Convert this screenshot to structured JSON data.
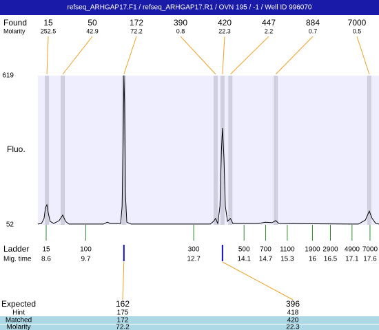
{
  "chart_data": {
    "type": "line",
    "title": "refseq_ARHGAP17.F1 / refseq_ARHGAP17.R1 / OVN 195 / -1 / Well ID 996070",
    "y_label": "Fluo.",
    "ylim": [
      52,
      619
    ],
    "yticks": [
      52,
      619
    ],
    "xlim": [
      8.37,
      17.85
    ],
    "series": [
      {
        "color": "#000000",
        "x": [
          8.37,
          8.47,
          8.54,
          8.58,
          8.62,
          8.66,
          8.71,
          8.81,
          8.96,
          9.06,
          9.14,
          9.23,
          10.19,
          10.3,
          10.38,
          10.67,
          10.71,
          10.74,
          10.76,
          10.78,
          10.8,
          10.84,
          10.96,
          13.16,
          13.25,
          13.31,
          13.37,
          13.43,
          13.47,
          13.5,
          13.54,
          13.58,
          13.64,
          13.72,
          13.79,
          14.5,
          14.69,
          14.88,
          14.98,
          15.07,
          17.28,
          17.47,
          17.58,
          17.66,
          17.76,
          17.85
        ],
        "values": [
          55,
          57,
          76,
          117,
          128,
          96,
          65,
          57,
          68,
          89,
          65,
          55,
          55,
          62,
          57,
          57,
          123,
          384,
          620,
          515,
          175,
          62,
          55,
          55,
          65,
          76,
          57,
          123,
          332,
          420,
          306,
          123,
          65,
          76,
          57,
          57,
          62,
          60,
          68,
          57,
          55,
          70,
          104,
          76,
          57,
          55
        ]
      }
    ],
    "found": {
      "label": "Found",
      "molarity_label": "Molarity",
      "sizes": [
        15,
        50,
        172,
        390,
        420,
        447,
        884,
        7000
      ],
      "molarity": [
        252.5,
        42.9,
        72.2,
        0.8,
        22.3,
        2.2,
        0.7,
        0.5
      ],
      "x": [
        8.62,
        9.06,
        10.76,
        13.31,
        13.5,
        13.72,
        14.98,
        17.58
      ]
    },
    "ladder": {
      "label": "Ladder",
      "time_label": "Mig. time",
      "sizes": [
        15,
        100,
        300,
        500,
        700,
        1100,
        1900,
        2900,
        4900,
        7000
      ],
      "mig_time": [
        8.6,
        9.7,
        12.7,
        14.1,
        14.7,
        15.3,
        16,
        16.5,
        17.1,
        17.6
      ]
    },
    "expected": {
      "labels": [
        "Expected",
        "Hint",
        "Matched",
        "Molarity"
      ],
      "expected": [
        162,
        396
      ],
      "hint": [
        175,
        418
      ],
      "matched": [
        172,
        420
      ],
      "molarity": [
        72.2,
        22.3
      ]
    }
  }
}
